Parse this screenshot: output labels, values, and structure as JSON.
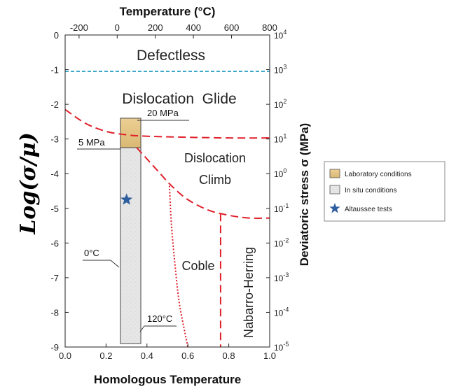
{
  "chart_data": {
    "type": "deformation-mechanism-map",
    "x_bottom": {
      "label": "Homologous Temperature",
      "range": [
        0.0,
        1.0
      ],
      "ticks": [
        "0.0",
        "0.2",
        "0.4",
        "0.6",
        "0.8",
        "1.0"
      ]
    },
    "x_top": {
      "label": "Temperature (°C)",
      "range": [
        -273,
        800
      ],
      "ticks": [
        "-200",
        "0",
        "200",
        "400",
        "600",
        "800"
      ]
    },
    "y_left": {
      "label": "Log(σ/μ)",
      "range": [
        -9,
        0
      ],
      "ticks": [
        "0",
        "-1",
        "-2",
        "-3",
        "-4",
        "-5",
        "-6",
        "-7",
        "-8",
        "-9"
      ]
    },
    "y_right": {
      "label": "Deviatoric stress σ (MPa)",
      "scale": "log",
      "ticks": [
        {
          "base": "10",
          "exp": "4"
        },
        {
          "base": "10",
          "exp": "3"
        },
        {
          "base": "10",
          "exp": "2"
        },
        {
          "base": "10",
          "exp": "1"
        },
        {
          "base": "10",
          "exp": "0"
        },
        {
          "base": "10",
          "exp": "-1"
        },
        {
          "base": "10",
          "exp": "-2"
        },
        {
          "base": "10",
          "exp": "-3"
        },
        {
          "base": "10",
          "exp": "-4"
        },
        {
          "base": "10",
          "exp": "-5"
        }
      ]
    },
    "regions": [
      {
        "name": "Defectless"
      },
      {
        "name": "Dislocation  Glide"
      },
      {
        "name": "Dislocation"
      },
      {
        "name": "Climb"
      },
      {
        "name": "Coble"
      },
      {
        "name": "Nabarro-Herring"
      }
    ],
    "boundaries": [
      {
        "id": "defectless",
        "style": "dashed",
        "color": "#3fa7c9",
        "points": [
          [
            0.0,
            -1.05
          ],
          [
            1.0,
            -1.05
          ]
        ]
      },
      {
        "id": "glide-climb",
        "style": "dashed",
        "color": "#e0202a",
        "points": [
          [
            0.0,
            -2.15
          ],
          [
            0.1,
            -2.55
          ],
          [
            0.2,
            -2.78
          ],
          [
            0.3,
            -2.88
          ],
          [
            0.4,
            -2.92
          ],
          [
            0.6,
            -2.95
          ],
          [
            0.8,
            -2.97
          ],
          [
            1.0,
            -2.97
          ]
        ]
      },
      {
        "id": "climb-diffusion",
        "style": "dashed",
        "color": "#e0202a",
        "points": [
          [
            0.35,
            -3.25
          ],
          [
            0.45,
            -3.9
          ],
          [
            0.52,
            -4.35
          ],
          [
            0.6,
            -4.75
          ],
          [
            0.7,
            -5.05
          ],
          [
            0.8,
            -5.2
          ],
          [
            0.9,
            -5.28
          ],
          [
            1.0,
            -5.28
          ]
        ]
      },
      {
        "id": "coble-left",
        "style": "dotted",
        "color": "#e0202a",
        "points": [
          [
            0.51,
            -4.35
          ],
          [
            0.52,
            -5.5
          ],
          [
            0.54,
            -6.8
          ],
          [
            0.56,
            -7.8
          ],
          [
            0.6,
            -9.0
          ]
        ]
      },
      {
        "id": "coble-nabarro",
        "style": "dashed",
        "color": "#e0202a",
        "points": [
          [
            0.76,
            -5.15
          ],
          [
            0.76,
            -9.0
          ]
        ]
      }
    ],
    "conditions": [
      {
        "name": "Laboratory conditions",
        "color": "#e9c98a",
        "x_range": [
          0.27,
          0.37
        ],
        "y_range": [
          -3.25,
          -2.4
        ]
      },
      {
        "name": "In situ conditions",
        "color": "#e4e4e4",
        "x_range": [
          0.27,
          0.37
        ],
        "y_range": [
          -8.9,
          -3.25
        ]
      }
    ],
    "points": [
      {
        "name": "Altaussee tests",
        "marker": "star",
        "color": "#2f5e9e",
        "x": 0.29,
        "y": -4.75
      }
    ],
    "annotations": [
      {
        "text": "20 MPa"
      },
      {
        "text": "5 MPa"
      },
      {
        "text": "0°C"
      },
      {
        "text": "120°C"
      }
    ],
    "legend": {
      "placement": "right",
      "items": [
        {
          "label": "Laboratory conditions",
          "swatch": "#e9c98a"
        },
        {
          "label": "In situ conditions",
          "swatch": "#e4e4e4"
        },
        {
          "label": "Altaussee tests",
          "swatch": "#2f5e9e"
        }
      ]
    }
  }
}
